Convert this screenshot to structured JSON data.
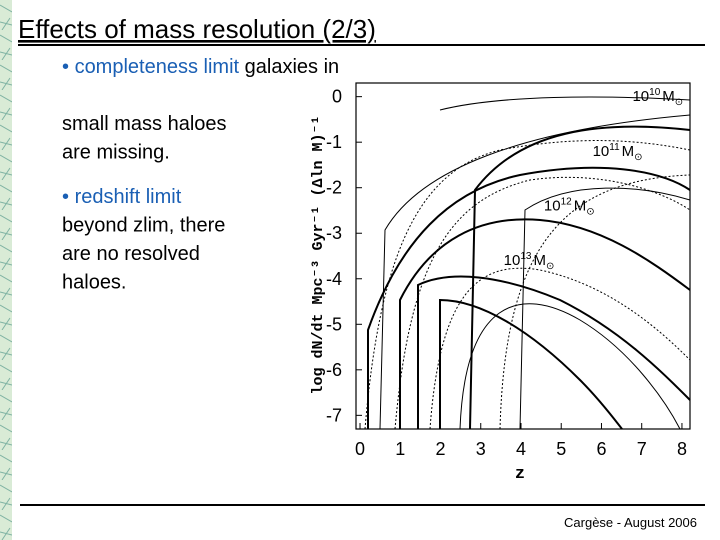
{
  "slide": {
    "title": "Effects of mass resolution (2/3)",
    "bullets": [
      {
        "lead": "completeness limit",
        "rest": [
          " galaxies in",
          "small mass haloes",
          "are missing."
        ]
      },
      {
        "lead": "redshift limit",
        "rest": [
          "beyond zlim, there",
          "are no resolved",
          "haloes."
        ]
      }
    ],
    "footer": "Cargèse - August 2006"
  },
  "figure": {
    "xlabel": "z",
    "ylabel": "log dN/dt Mpc⁻³ Gyr⁻¹ (Δln M)⁻¹",
    "xlim": [
      -0.1,
      8.2
    ],
    "ylim": [
      -7.3,
      0.3
    ],
    "xticks": [
      0,
      1,
      2,
      3,
      4,
      5,
      6,
      7,
      8
    ],
    "yticks": [
      0,
      -1,
      -2,
      -3,
      -4,
      -5,
      -6,
      -7
    ],
    "annotations": [
      {
        "base": "10",
        "exp": "10",
        "unit": "M",
        "x": 7.4,
        "y": -0.1
      },
      {
        "base": "10",
        "exp": "11",
        "unit": "M",
        "x": 6.4,
        "y": -1.3
      },
      {
        "base": "10",
        "exp": "12",
        "unit": "M",
        "x": 5.2,
        "y": -2.5
      },
      {
        "base": "10",
        "exp": "13",
        "unit": "M",
        "x": 4.2,
        "y": -3.7
      }
    ]
  }
}
